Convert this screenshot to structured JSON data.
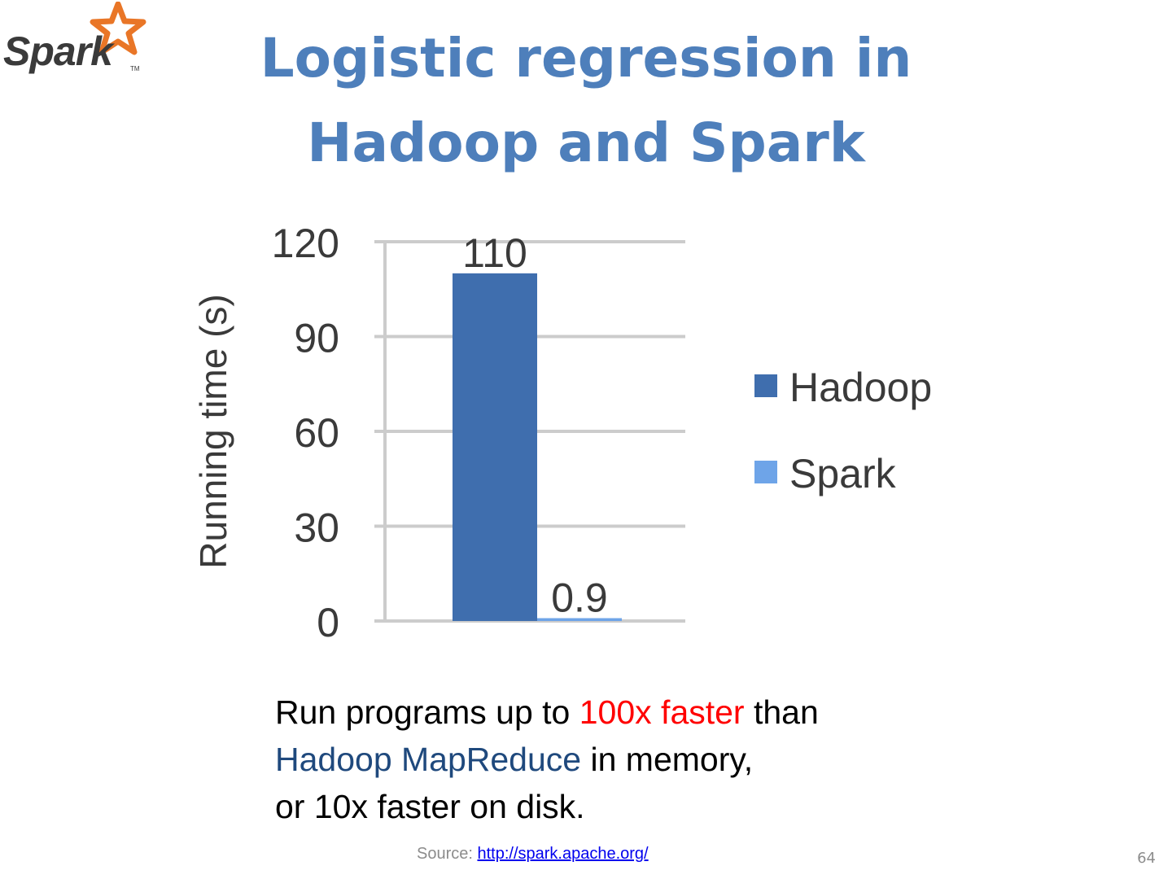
{
  "logo": {
    "word": "Spark",
    "tm": "TM"
  },
  "title": {
    "line1": "Logistic regression in",
    "line2": "Hadoop and Spark"
  },
  "chart_data": {
    "type": "bar",
    "categories": [
      "Hadoop",
      "Spark"
    ],
    "values": [
      110,
      0.9
    ],
    "value_labels": [
      "110",
      "0.9"
    ],
    "colors": [
      "#3f6eae",
      "#6ea4e8"
    ],
    "ylabel": "Running time (s)",
    "xlabel": "",
    "ylim": [
      0,
      120
    ],
    "yticks": [
      0,
      30,
      60,
      90,
      120
    ],
    "ytick_labels": [
      "0",
      "30",
      "60",
      "90",
      "120"
    ],
    "grid": true,
    "legend": {
      "position": "right",
      "entries": [
        "Hadoop",
        "Spark"
      ]
    }
  },
  "body": {
    "line1_a": "Run programs up to ",
    "line1_b": "100x faster",
    "line1_c": " than",
    "line2_a": "Hadoop MapReduce",
    "line2_b": " in memory,",
    "line3": "or 10x faster on disk."
  },
  "source": {
    "label": "Source: ",
    "link": "http://spark.apache.org/"
  },
  "page_number": "64"
}
